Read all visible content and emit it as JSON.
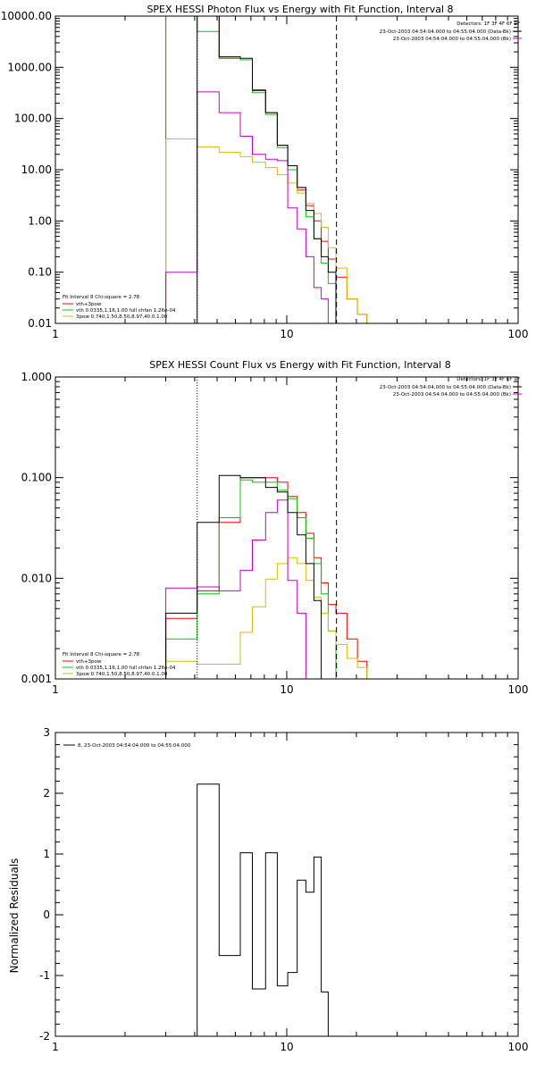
{
  "chart_data": [
    {
      "type": "line",
      "title": "SPEX HESSI Photon Flux vs Energy with Fit Function, Interval 8",
      "xlabel": "",
      "ylabel": "",
      "xscale": "log",
      "yscale": "log",
      "xlim": [
        1,
        100
      ],
      "ylim": [
        0.01,
        10000
      ],
      "x_tick_labels": [
        "1",
        "10",
        "100"
      ],
      "y_tick_labels": [
        "0.01",
        "0.10",
        "1.00",
        "10.00",
        "100.00",
        "1000.00",
        "10000.00"
      ],
      "x_edges": [
        3,
        4.1,
        5.1,
        6.3,
        7.1,
        8.1,
        9.1,
        10.1,
        11.1,
        12.1,
        13.1,
        14.1,
        15.1,
        16.3,
        18.2,
        20.2,
        22.2
      ],
      "series": [
        {
          "name": "vth+3pow",
          "color": "#ff0000",
          "values": [
            10000,
            10000,
            1500,
            1400,
            350,
            130,
            30,
            12,
            4,
            2,
            1,
            0.4,
            0.18,
            0.08,
            0.03,
            0.015
          ]
        },
        {
          "name": "vth 0.0335,1.16,1.00  full chfan 1.26e-04",
          "color": "#00cc00",
          "values": [
            10000,
            5000,
            1500,
            1400,
            320,
            120,
            27,
            10,
            4.5,
            1.2,
            0.45,
            0.15,
            0.06,
            0.01
          ]
        },
        {
          "name": "3pow 0.740,1.50,8.50,8.97,40.0,1.00",
          "color": "#ddbb00",
          "values": [
            40,
            28,
            22,
            18,
            14,
            11,
            8,
            5.5,
            3.5,
            2.2,
            1.4,
            0.75,
            0.3,
            0.12,
            0.03,
            0.015
          ]
        },
        {
          "name": "",
          "color": "#cc00cc",
          "values": [
            0.1,
            330,
            130,
            45,
            20,
            16,
            15,
            1.8,
            0.7,
            0.2,
            0.05,
            0.03
          ]
        },
        {
          "name": "",
          "color": "#000000",
          "values": [
            0.01,
            10000,
            1600,
            1500,
            360,
            130,
            30,
            12,
            4.5,
            1.6,
            0.45,
            0.2,
            0.1
          ]
        }
      ],
      "vlines": [
        4.1,
        16.4
      ],
      "legend_top": [
        "Detectors: 1F 3F 4F 6F 9F",
        "23-Oct-2003 04:54:04.000 to 04:55:04.000 (Data-Bk)",
        "23-Oct-2003 04:54:04.000 to 04:55:04.000 (Bk)"
      ],
      "legend_bottom": [
        "Fit Interval 8    Chi-square = 2.78",
        "vth+3pow",
        "vth 0.0335,1.16,1.00  full chfan 1.26e-04",
        "3pow 0.740,1.50,8.50,8.97,40.0,1.00"
      ]
    },
    {
      "type": "line",
      "title": "SPEX HESSI Count Flux vs Energy with Fit Function, Interval 8",
      "xlabel": "",
      "ylabel": "",
      "xscale": "log",
      "yscale": "log",
      "xlim": [
        1,
        100
      ],
      "ylim": [
        0.001,
        1
      ],
      "x_tick_labels": [
        "1",
        "10",
        "100"
      ],
      "y_tick_labels": [
        "0.001",
        "0.010",
        "0.100",
        "1.000"
      ],
      "x_edges": [
        3,
        4.1,
        5.1,
        6.3,
        7.1,
        8.1,
        9.1,
        10.1,
        11.1,
        12.1,
        13.1,
        14.1,
        15.1,
        16.3,
        18.2,
        20.2,
        22.2
      ],
      "series": [
        {
          "name": "vth+3pow",
          "color": "#ff0000",
          "values": [
            0.004,
            0.0075,
            0.036,
            0.1,
            0.1,
            0.1,
            0.09,
            0.065,
            0.045,
            0.028,
            0.016,
            0.009,
            0.0055,
            0.0045,
            0.0025,
            0.0015
          ]
        },
        {
          "name": "vth 0.0335,1.16,1.00  full chfan 1.26e-04",
          "color": "#00cc00",
          "values": [
            0.0025,
            0.007,
            0.04,
            0.095,
            0.09,
            0.09,
            0.075,
            0.062,
            0.04,
            0.025,
            0.014,
            0.007,
            0.003
          ]
        },
        {
          "name": "3pow 0.740,1.50,8.50,8.97,40.0,1.00",
          "color": "#ddbb00",
          "values": [
            0.0015,
            0.0014,
            0.0014,
            0.0029,
            0.0052,
            0.0098,
            0.014,
            0.016,
            0.014,
            0.0095,
            0.0065,
            0.0045,
            0.003,
            0.0022,
            0.0016,
            0.0013
          ]
        },
        {
          "name": "",
          "color": "#cc00cc",
          "values": [
            0.008,
            0.0082,
            0.0075,
            0.012,
            0.024,
            0.045,
            0.06,
            0.0095,
            0.0045
          ]
        },
        {
          "name": "",
          "color": "#000000",
          "values": [
            0.0045,
            0.036,
            0.105,
            0.1,
            0.1,
            0.08,
            0.072,
            0.045,
            0.027,
            0.014,
            0.006
          ]
        }
      ],
      "vlines": [
        4.1,
        16.4
      ],
      "legend_top": [
        "Detectors: 1F 3F 4F 6F 9F",
        "23-Oct-2003 04:54:04.000 to 04:55:04.000 (Data-Bk)",
        "23-Oct-2003 04:54:04.000 to 04:55:04.000 (Bk)"
      ],
      "legend_bottom": [
        "Fit Interval 8    Chi-square = 2.78",
        "vth+3pow",
        "vth 0.0335,1.16,1.00  full chfan 1.26e-04",
        "3pow 0.740,1.50,8.50,8.97,40.0,1.00"
      ]
    },
    {
      "type": "line",
      "title": "",
      "xlabel": "",
      "ylabel": "Normalized Residuals",
      "xscale": "log",
      "yscale": "linear",
      "xlim": [
        1,
        100
      ],
      "ylim": [
        -2,
        3
      ],
      "x_tick_labels": [
        "1",
        "10",
        "100"
      ],
      "y_tick_labels": [
        "-2",
        "-1",
        "0",
        "1",
        "2",
        "3"
      ],
      "x_edges": [
        4.1,
        5.1,
        6.3,
        7.1,
        8.1,
        9.1,
        10.1,
        11.1,
        12.1,
        13.1,
        14.1,
        15.1,
        16.3
      ],
      "series": [
        {
          "name": "8, 23-Oct-2003 04:54:04.000 to 04:55:04.000",
          "color": "#000000",
          "values": [
            2.15,
            -0.67,
            1.02,
            -1.22,
            1.02,
            -1.17,
            -0.95,
            0.57,
            0.37,
            0.95,
            -1.27,
            -2.0
          ]
        }
      ],
      "legend_top": [
        "8, 23-Oct-2003 04:54:04.000 to 04:55:04.000"
      ]
    }
  ]
}
